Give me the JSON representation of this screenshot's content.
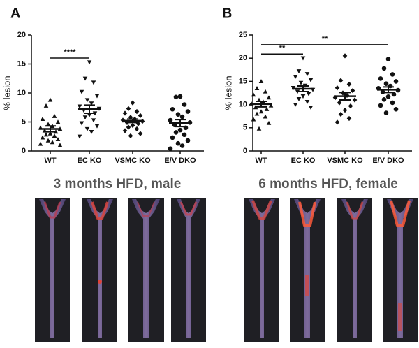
{
  "chart_data": [
    {
      "type": "dotplot",
      "panel": "A",
      "ylabel": "% lesion",
      "subtitle": "3 months HFD, male",
      "categories": [
        "WT",
        "EC KO",
        "VSMC KO",
        "E/V DKO"
      ],
      "groups": [
        {
          "marker": "triangle-up",
          "values": [
            8.8,
            7.8,
            6.0,
            5.5,
            5.0,
            4.6,
            4.3,
            4.0,
            3.8,
            3.5,
            3.3,
            3.0,
            2.8,
            2.6,
            2.3,
            2.0,
            1.8,
            1.5,
            1.2,
            1.0
          ],
          "mean": 3.8,
          "sem": 0.5
        },
        {
          "marker": "triangle-down",
          "values": [
            15.3,
            12.5,
            11.8,
            10.2,
            9.5,
            8.8,
            8.2,
            7.7,
            7.3,
            7.0,
            6.5,
            6.2,
            5.8,
            5.3,
            4.8,
            4.3,
            3.8,
            3.3,
            2.5
          ],
          "mean": 7.2,
          "sem": 0.7
        },
        {
          "marker": "diamond",
          "values": [
            8.3,
            7.3,
            6.8,
            6.5,
            6.1,
            5.8,
            5.5,
            5.3,
            5.1,
            4.9,
            4.7,
            4.4,
            4.1,
            3.8,
            3.5,
            3.0,
            2.6
          ],
          "mean": 5.2,
          "sem": 0.3
        },
        {
          "marker": "circle",
          "values": [
            9.4,
            9.3,
            8.0,
            7.2,
            6.8,
            6.3,
            5.9,
            5.3,
            4.9,
            4.5,
            4.0,
            3.6,
            3.2,
            2.8,
            2.3,
            1.8,
            1.3,
            0.9,
            0.4
          ],
          "mean": 4.8,
          "sem": 0.6
        }
      ],
      "ylim": [
        0,
        20
      ],
      "yticks": [
        0,
        5,
        10,
        15,
        20
      ],
      "color": "#111111",
      "significance": [
        {
          "label": "****",
          "between": [
            "WT",
            "EC KO"
          ]
        }
      ]
    },
    {
      "type": "dotplot",
      "panel": "B",
      "ylabel": "% lesion",
      "subtitle": "6 months HFD, female",
      "categories": [
        "WT",
        "EC KO",
        "VSMC KO",
        "E/V DKO"
      ],
      "groups": [
        {
          "marker": "triangle-up",
          "values": [
            15.0,
            13.5,
            12.8,
            12.1,
            11.5,
            11.0,
            10.6,
            10.2,
            9.8,
            9.4,
            9.0,
            8.5,
            8.0,
            7.4,
            6.8,
            6.0,
            4.8
          ],
          "mean": 10.1,
          "sem": 0.6
        },
        {
          "marker": "triangle-down",
          "values": [
            20.0,
            17.2,
            16.6,
            16.0,
            15.3,
            14.7,
            14.1,
            13.6,
            13.2,
            12.8,
            12.3,
            11.8,
            11.2,
            10.6,
            10.0,
            9.4
          ],
          "mean": 13.4,
          "sem": 0.6
        },
        {
          "marker": "diamond",
          "values": [
            20.5,
            15.2,
            14.4,
            13.6,
            13.0,
            12.5,
            12.0,
            11.5,
            11.0,
            10.4,
            9.7,
            8.8,
            7.9,
            7.0,
            6.2
          ],
          "mean": 11.8,
          "sem": 0.8
        },
        {
          "marker": "circle",
          "values": [
            19.8,
            17.8,
            16.5,
            15.6,
            15.0,
            14.5,
            14.0,
            13.5,
            13.1,
            12.7,
            12.2,
            11.7,
            11.1,
            10.4,
            9.8,
            9.0,
            8.2
          ],
          "mean": 13.2,
          "sem": 0.6
        }
      ],
      "ylim": [
        0,
        25
      ],
      "yticks": [
        0,
        5,
        10,
        15,
        20,
        25
      ],
      "color": "#111111",
      "significance": [
        {
          "label": "**",
          "between": [
            "WT",
            "EC KO"
          ]
        },
        {
          "label": "**",
          "between": [
            "WT",
            "E/V DKO"
          ]
        }
      ]
    }
  ]
}
